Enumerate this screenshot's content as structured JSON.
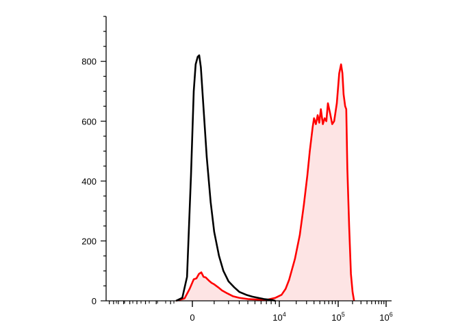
{
  "chart_data": {
    "type": "area",
    "x_scale": "biexponential",
    "y_range": [
      0,
      950
    ],
    "y_ticks": [
      {
        "value": 0,
        "label": "0"
      },
      {
        "value": 200,
        "label": "200"
      },
      {
        "value": 400,
        "label": "400"
      },
      {
        "value": 600,
        "label": "600"
      },
      {
        "value": 800,
        "label": "800"
      }
    ],
    "x_ticks": [
      {
        "value": 0,
        "base": "0",
        "exp": ""
      },
      {
        "value": 10000,
        "base": "10",
        "exp": "4"
      },
      {
        "value": 100000,
        "base": "10",
        "exp": "5"
      },
      {
        "value": 1000000,
        "base": "10",
        "exp": "6"
      }
    ],
    "grid": false,
    "legend": "none",
    "series": [
      {
        "color": "#000000",
        "fill": "none",
        "points": [
          [
            -700,
            0
          ],
          [
            -400,
            10
          ],
          [
            -200,
            80
          ],
          [
            -50,
            420
          ],
          [
            50,
            700
          ],
          [
            120,
            790
          ],
          [
            200,
            815
          ],
          [
            260,
            820
          ],
          [
            330,
            780
          ],
          [
            450,
            640
          ],
          [
            600,
            480
          ],
          [
            800,
            330
          ],
          [
            1000,
            230
          ],
          [
            1300,
            150
          ],
          [
            1600,
            100
          ],
          [
            2000,
            65
          ],
          [
            2500,
            45
          ],
          [
            3000,
            30
          ],
          [
            3800,
            20
          ],
          [
            4600,
            14
          ],
          [
            5500,
            10
          ],
          [
            6500,
            6
          ],
          [
            8000,
            3
          ],
          [
            9000,
            0
          ]
        ]
      },
      {
        "color": "#ff0000",
        "fill": "#fde4e4",
        "points": [
          [
            -700,
            0
          ],
          [
            -300,
            8
          ],
          [
            -100,
            40
          ],
          [
            50,
            72
          ],
          [
            150,
            75
          ],
          [
            250,
            90
          ],
          [
            350,
            95
          ],
          [
            450,
            80
          ],
          [
            550,
            78
          ],
          [
            700,
            68
          ],
          [
            850,
            60
          ],
          [
            1000,
            55
          ],
          [
            1250,
            45
          ],
          [
            1500,
            35
          ],
          [
            1900,
            25
          ],
          [
            2400,
            15
          ],
          [
            3000,
            10
          ],
          [
            4000,
            6
          ],
          [
            5500,
            4
          ],
          [
            7000,
            3
          ],
          [
            9000,
            10
          ],
          [
            11000,
            20
          ],
          [
            13000,
            40
          ],
          [
            15000,
            70
          ],
          [
            19000,
            140
          ],
          [
            23000,
            220
          ],
          [
            27000,
            320
          ],
          [
            31000,
            420
          ],
          [
            34000,
            500
          ],
          [
            38000,
            580
          ],
          [
            40000,
            610
          ],
          [
            43000,
            590
          ],
          [
            46000,
            620
          ],
          [
            49000,
            595
          ],
          [
            52000,
            640
          ],
          [
            56000,
            590
          ],
          [
            60000,
            610
          ],
          [
            64000,
            600
          ],
          [
            68000,
            660
          ],
          [
            74000,
            625
          ],
          [
            80000,
            590
          ],
          [
            86000,
            600
          ],
          [
            95000,
            660
          ],
          [
            105000,
            760
          ],
          [
            115000,
            790
          ],
          [
            123000,
            760
          ],
          [
            130000,
            690
          ],
          [
            140000,
            650
          ],
          [
            148000,
            640
          ],
          [
            156000,
            440
          ],
          [
            170000,
            250
          ],
          [
            185000,
            90
          ],
          [
            200000,
            30
          ],
          [
            215000,
            0
          ]
        ]
      }
    ]
  }
}
